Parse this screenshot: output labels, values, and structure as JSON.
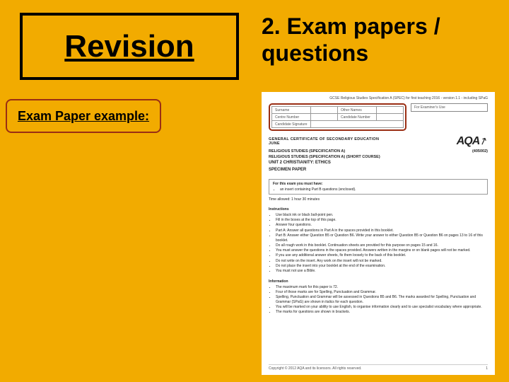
{
  "colors": {
    "background": "#f2ab00",
    "highlight_border": "#9a2e14",
    "paper_bg": "#ffffff"
  },
  "title": "Revision",
  "subtitle": "2. Exam papers / questions",
  "example_label": "Exam Paper example:",
  "paper": {
    "header_line": "GCSE Religious Studies Specification A (SPEC) for first teaching 2016 - version 1.1 - including SPaG",
    "candidate_fields": {
      "surname": "Surname",
      "other_names": "Other Names",
      "centre_number": "Centre Number",
      "candidate_number": "Candidate Number",
      "signature": "Candidate Signature"
    },
    "examiner_label": "For Examiner's Use",
    "cert": "GENERAL CERTIFICATE OF SECONDARY EDUCATION",
    "month": "JUNE",
    "logo": "AQA",
    "course1": "RELIGIOUS STUDIES (SPECIFICATION A)",
    "course1_code": "(405002)",
    "course2": "RELIGIOUS STUDIES (SPECIFICATION A) (SHORT COURSE)",
    "unit": "UNIT 2  CHRISTIANITY: ETHICS",
    "spec": "SPECIMEN PAPER",
    "materials_title": "For this exam you must have:",
    "materials_item": "an insert containing Part B questions (enclosed).",
    "time": "Time allowed: 1 hour 30 minutes",
    "instructions_title": "Instructions",
    "instructions": [
      "Use black ink or black ball-point pen.",
      "Fill in the boxes at the top of this page.",
      "Answer four questions.",
      "Part A: Answer all questions in Part A in the spaces provided in this booklet.",
      "Part B: Answer either Question B5 or Question B6. Write your answer to either Question B5 or Question B6 on pages 13 to 16 of this booklet.",
      "Do all rough work in this booklet. Continuation sheets are provided for this purpose on pages 15 and 16.",
      "You must answer the questions in the spaces provided. Answers written in the margins or on blank pages will not be marked.",
      "If you use any additional answer sheets, fix them loosely to the back of this booklet.",
      "Do not write on the insert. Any work on the insert will not be marked.",
      "Do not place the insert into your booklet at the end of the examination.",
      "You must not use a Bible."
    ],
    "information_title": "Information",
    "information": [
      "The maximum mark for this paper is 72.",
      "Four of those marks are for Spelling, Punctuation and Grammar.",
      "Spelling, Punctuation and Grammar will be assessed in Questions B5 and B6. The marks awarded for Spelling, Punctuation and Grammar (SPaG) are shown in italics for each question.",
      "You will be marked on your ability to use English, to organise information clearly and to use specialist vocabulary where appropriate.",
      "The marks for questions are shown in brackets."
    ],
    "copyright": "Copyright © 2012 AQA and its licensors. All rights reserved.",
    "page_num": "1"
  }
}
